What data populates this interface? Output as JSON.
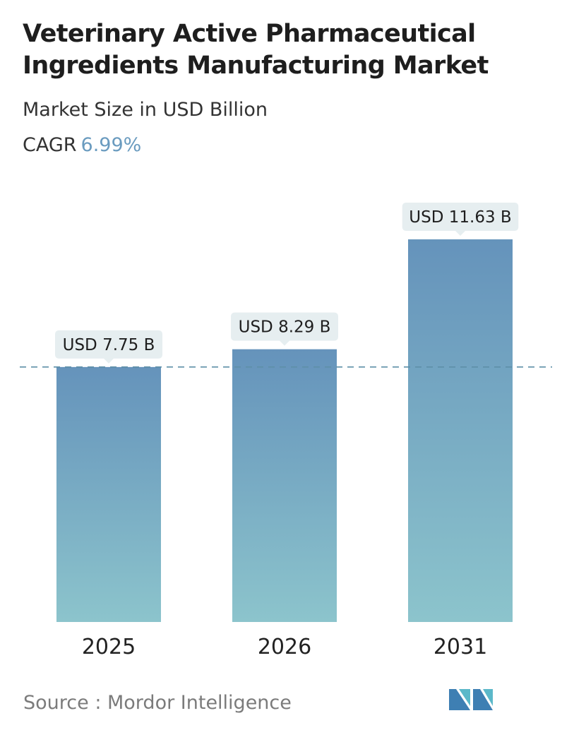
{
  "header": {
    "title": "Veterinary Active Pharmaceutical Ingredients Manufacturing Market",
    "subtitle": "Market Size in USD Billion",
    "cagr_label": "CAGR",
    "cagr_value": "6.99%"
  },
  "chart_data": {
    "type": "bar",
    "categories": [
      "2025",
      "2026",
      "2031"
    ],
    "values": [
      7.75,
      8.29,
      11.63
    ],
    "data_labels": [
      "USD 7.75 B",
      "USD 8.29 B",
      "USD 11.63 B"
    ],
    "title": "Veterinary Active Pharmaceutical Ingredients Manufacturing Market",
    "ylabel": "Market Size in USD Billion",
    "reference_line": 7.75,
    "grid": false,
    "colors": {
      "bar_top": "#6593bb",
      "bar_bottom": "#8cc4cc",
      "label_bg": "#e6eef0",
      "dashed_line": "#5e8fa8"
    }
  },
  "footer": {
    "source": "Source :  Mordor Intelligence",
    "logo": "mordor-intelligence-logo"
  }
}
